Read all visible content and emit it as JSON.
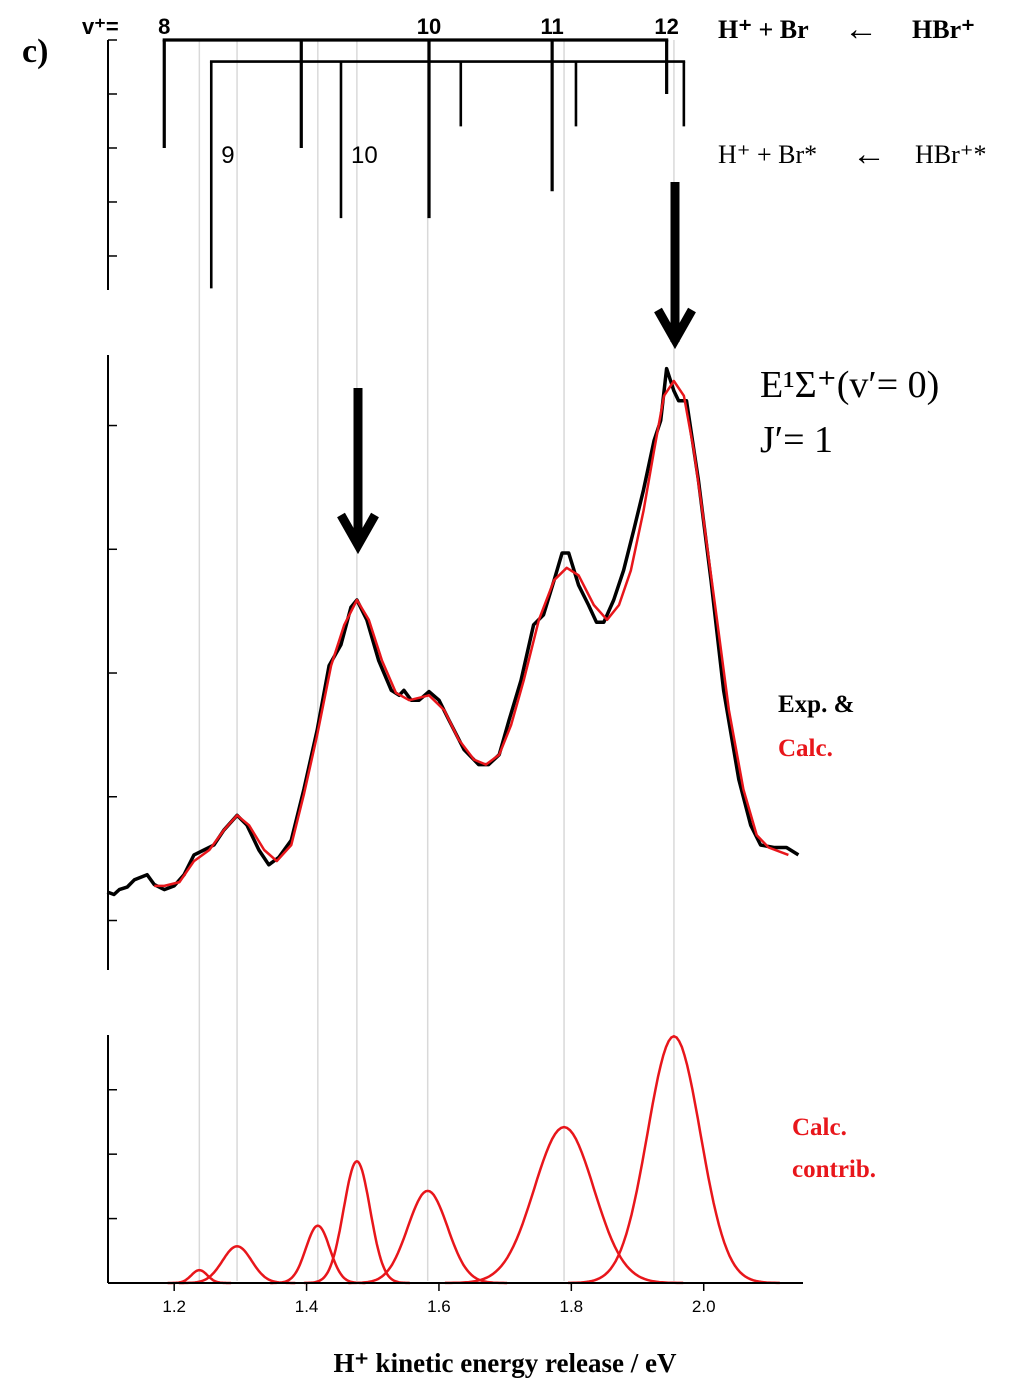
{
  "chart_data": [
    {
      "type": "stick",
      "panel_label": "c)",
      "v_label": "v⁺=",
      "arrow_label": "←",
      "invert_y": true,
      "ylim": [
        0,
        4.63
      ],
      "yticks": [
        0,
        1,
        2,
        3,
        4
      ],
      "series": [
        {
          "name": "H⁺ + Br",
          "parent": "HBr⁺",
          "color": "#000000",
          "level": 0,
          "x": [
            1.185,
            1.392,
            1.585,
            1.771,
            1.944
          ],
          "values": [
            2.0,
            2.0,
            3.3,
            2.8,
            1.0
          ],
          "labels": [
            "8",
            null,
            "10",
            "11",
            "12"
          ]
        },
        {
          "name": "H⁺ + Br*",
          "parent": "HBr⁺*",
          "color": "#000000",
          "level": 0.4,
          "x": [
            1.256,
            1.452,
            1.633,
            1.807,
            1.97
          ],
          "values": [
            4.6,
            3.3,
            1.6,
            1.6,
            1.6
          ],
          "labels": [
            "9",
            "10",
            null,
            null,
            null
          ]
        }
      ]
    },
    {
      "type": "line",
      "annotation": [
        "E¹Σ⁺(v′= 0)",
        "J′= 1"
      ],
      "ylim": [
        0.6,
        5.57
      ],
      "yticks": [
        1,
        2,
        3,
        4,
        5
      ],
      "series": [
        {
          "name": "Exp. &",
          "color": "#000000",
          "x": [
            1.099,
            1.109,
            1.117,
            1.129,
            1.14,
            1.159,
            1.17,
            1.185,
            1.2,
            1.215,
            1.23,
            1.245,
            1.26,
            1.275,
            1.295,
            1.31,
            1.328,
            1.343,
            1.358,
            1.377,
            1.396,
            1.416,
            1.434,
            1.452,
            1.467,
            1.476,
            1.491,
            1.509,
            1.528,
            1.54,
            1.547,
            1.558,
            1.57,
            1.585,
            1.6,
            1.615,
            1.638,
            1.66,
            1.675,
            1.691,
            1.706,
            1.724,
            1.743,
            1.758,
            1.774,
            1.786,
            1.796,
            1.811,
            1.826,
            1.838,
            1.849,
            1.864,
            1.879,
            1.894,
            1.909,
            1.925,
            1.935,
            1.944,
            1.955,
            1.962,
            1.974,
            1.992,
            2.011,
            2.03,
            2.053,
            2.071,
            2.086,
            2.106,
            2.125,
            2.143
          ],
          "values": [
            1.23,
            1.21,
            1.25,
            1.27,
            1.33,
            1.37,
            1.29,
            1.25,
            1.28,
            1.37,
            1.53,
            1.57,
            1.61,
            1.73,
            1.85,
            1.77,
            1.57,
            1.45,
            1.51,
            1.65,
            2.06,
            2.54,
            3.06,
            3.23,
            3.53,
            3.59,
            3.43,
            3.1,
            2.86,
            2.82,
            2.86,
            2.78,
            2.78,
            2.85,
            2.78,
            2.62,
            2.38,
            2.26,
            2.26,
            2.34,
            2.62,
            2.94,
            3.39,
            3.47,
            3.75,
            3.97,
            3.97,
            3.71,
            3.55,
            3.41,
            3.41,
            3.59,
            3.83,
            4.15,
            4.48,
            4.88,
            5.04,
            5.46,
            5.28,
            5.2,
            5.2,
            4.56,
            3.75,
            2.86,
            2.14,
            1.77,
            1.61,
            1.59,
            1.59,
            1.53
          ]
        },
        {
          "name": "Calc.",
          "color": "#e8161b",
          "x": [
            1.17,
            1.185,
            1.208,
            1.23,
            1.253,
            1.275,
            1.295,
            1.313,
            1.336,
            1.355,
            1.377,
            1.396,
            1.416,
            1.437,
            1.457,
            1.476,
            1.494,
            1.514,
            1.535,
            1.555,
            1.57,
            1.585,
            1.608,
            1.63,
            1.653,
            1.671,
            1.691,
            1.709,
            1.728,
            1.751,
            1.774,
            1.793,
            1.811,
            1.834,
            1.854,
            1.872,
            1.89,
            1.909,
            1.925,
            1.94,
            1.955,
            1.97,
            1.985,
            2.0,
            2.02,
            2.038,
            2.06,
            2.08,
            2.098,
            2.128
          ],
          "values": [
            1.28,
            1.28,
            1.31,
            1.48,
            1.57,
            1.73,
            1.85,
            1.77,
            1.57,
            1.48,
            1.61,
            2.02,
            2.5,
            3.06,
            3.39,
            3.59,
            3.43,
            3.1,
            2.84,
            2.78,
            2.8,
            2.82,
            2.7,
            2.46,
            2.3,
            2.26,
            2.34,
            2.58,
            2.94,
            3.43,
            3.75,
            3.85,
            3.79,
            3.55,
            3.43,
            3.55,
            3.83,
            4.31,
            4.8,
            5.24,
            5.36,
            5.24,
            4.8,
            4.23,
            3.43,
            2.7,
            2.06,
            1.69,
            1.59,
            1.53
          ]
        }
      ]
    },
    {
      "type": "gaussian",
      "name_lines": [
        "Calc.",
        "contrib."
      ],
      "color": "#e8161b",
      "centers": [
        1.238,
        1.295,
        1.417,
        1.476,
        1.583,
        1.789,
        1.955
      ],
      "heights": [
        0.2,
        0.57,
        0.89,
        1.89,
        1.43,
        2.42,
        3.83
      ],
      "widths": [
        0.012,
        0.022,
        0.018,
        0.02,
        0.03,
        0.045,
        0.04
      ],
      "grid": true,
      "ylim": [
        0,
        3.85
      ],
      "yticks": [
        0,
        1,
        2,
        3
      ],
      "xlim": [
        1.1,
        2.15
      ],
      "xticks": [
        1.2,
        1.4,
        1.6,
        1.8,
        {
          "value": 2,
          "label": "2.0"
        }
      ],
      "xlabel": "H⁺ kinetic energy release / eV"
    }
  ]
}
